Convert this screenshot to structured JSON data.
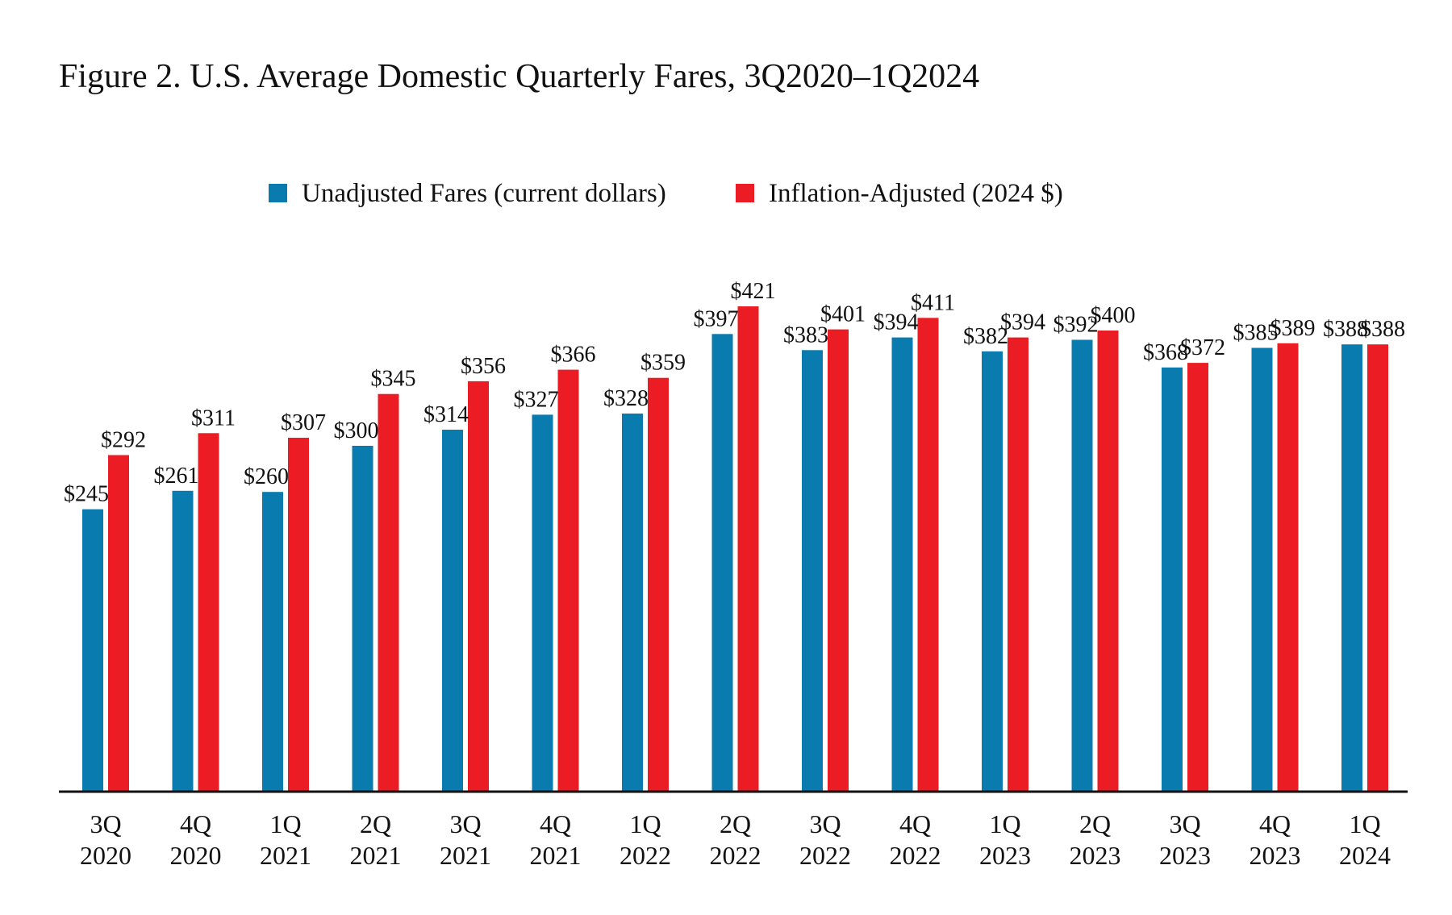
{
  "chart_data": {
    "type": "bar",
    "title": "Figure 2. U.S. Average Domestic Quarterly Fares, 3Q2020–1Q2024",
    "xlabel": "",
    "ylabel": "",
    "ylim": [
      0,
      421
    ],
    "legend_position": "top-center",
    "grid": false,
    "categories": [
      [
        "3Q",
        "2020"
      ],
      [
        "4Q",
        "2020"
      ],
      [
        "1Q",
        "2021"
      ],
      [
        "2Q",
        "2021"
      ],
      [
        "3Q",
        "2021"
      ],
      [
        "4Q",
        "2021"
      ],
      [
        "1Q",
        "2022"
      ],
      [
        "2Q",
        "2022"
      ],
      [
        "3Q",
        "2022"
      ],
      [
        "4Q",
        "2022"
      ],
      [
        "1Q",
        "2023"
      ],
      [
        "2Q",
        "2023"
      ],
      [
        "3Q",
        "2023"
      ],
      [
        "4Q",
        "2023"
      ],
      [
        "1Q",
        "2024"
      ]
    ],
    "series": [
      {
        "name": "Unadjusted Fares (current dollars)",
        "color": "#0a7bae",
        "values": [
          245,
          261,
          260,
          300,
          314,
          327,
          328,
          397,
          383,
          394,
          382,
          392,
          368,
          385,
          388
        ],
        "labels": [
          "$245",
          "$261",
          "$260",
          "$300",
          "$314",
          "$327",
          "$328",
          "$397",
          "$383",
          "$394",
          "$382",
          "$392",
          "$368",
          "$385",
          "$388"
        ]
      },
      {
        "name": "Inflation-Adjusted (2024 $)",
        "color": "#ec1c24",
        "values": [
          292,
          311,
          307,
          345,
          356,
          366,
          359,
          421,
          401,
          411,
          394,
          400,
          372,
          389,
          388
        ],
        "labels": [
          "$292",
          "$311",
          "$307",
          "$345",
          "$356",
          "$366",
          "$359",
          "$421",
          "$401",
          "$411",
          "$394",
          "$400",
          "$372",
          "$389",
          "$388"
        ]
      }
    ]
  }
}
